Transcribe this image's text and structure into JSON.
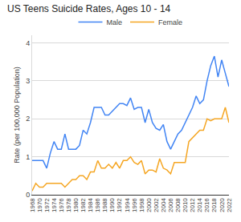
{
  "chart_data": {
    "type": "line",
    "title": "US Teens Suicide Rates, Ages 10 - 14",
    "y_label": "Rate (per 100,000 Population)",
    "x": [
      1968,
      1969,
      1970,
      1971,
      1972,
      1973,
      1974,
      1975,
      1976,
      1977,
      1978,
      1979,
      1980,
      1981,
      1982,
      1983,
      1984,
      1985,
      1986,
      1987,
      1988,
      1989,
      1990,
      1991,
      1992,
      1993,
      1994,
      1995,
      1996,
      1997,
      1998,
      1999,
      2000,
      2001,
      2002,
      2003,
      2004,
      2005,
      2006,
      2007,
      2008,
      2009,
      2010,
      2011,
      2012,
      2013,
      2014,
      2015,
      2016,
      2017,
      2018,
      2019,
      2020,
      2021,
      2022
    ],
    "series": [
      {
        "name": "Male",
        "color": "#4285f4",
        "values": [
          0.9,
          0.9,
          0.9,
          0.9,
          0.7,
          1.1,
          1.4,
          1.2,
          1.2,
          1.6,
          1.2,
          1.2,
          1.2,
          1.3,
          1.7,
          1.6,
          1.9,
          2.3,
          2.3,
          2.3,
          2.1,
          2.1,
          2.2,
          2.3,
          2.4,
          2.4,
          2.35,
          2.55,
          2.25,
          2.3,
          2.3,
          1.9,
          2.25,
          1.9,
          1.75,
          1.7,
          1.85,
          1.4,
          1.2,
          1.4,
          1.6,
          1.7,
          1.9,
          2.1,
          2.3,
          2.6,
          2.4,
          2.5,
          3.0,
          3.4,
          3.65,
          3.1,
          3.55,
          3.2,
          2.85
        ]
      },
      {
        "name": "Female",
        "color": "#f5a623",
        "values": [
          0.1,
          0.3,
          0.2,
          0.2,
          0.3,
          0.3,
          0.3,
          0.3,
          0.3,
          0.2,
          0.3,
          0.4,
          0.4,
          0.5,
          0.5,
          0.4,
          0.6,
          0.6,
          0.9,
          0.7,
          0.7,
          0.8,
          0.7,
          0.85,
          0.7,
          0.9,
          0.9,
          1.0,
          0.85,
          0.8,
          0.9,
          0.55,
          0.65,
          0.65,
          0.6,
          0.95,
          0.7,
          0.65,
          0.55,
          0.85,
          0.85,
          0.85,
          0.85,
          1.4,
          1.5,
          1.6,
          1.7,
          1.7,
          2.0,
          1.95,
          2.0,
          2.0,
          2.0,
          2.3,
          1.9
        ]
      }
    ],
    "xlim": [
      1968,
      2022
    ],
    "xticks": [
      1968,
      1970,
      1972,
      1974,
      1976,
      1978,
      1980,
      1982,
      1984,
      1986,
      1988,
      1990,
      1992,
      1994,
      1996,
      1998,
      2000,
      2002,
      2004,
      2006,
      2008,
      2010,
      2012,
      2014,
      2016,
      2018,
      2020,
      2022
    ],
    "ylim": [
      0,
      4.2
    ],
    "yticks": [
      0,
      1,
      2,
      3,
      4
    ],
    "grid": true,
    "legend": "top"
  }
}
